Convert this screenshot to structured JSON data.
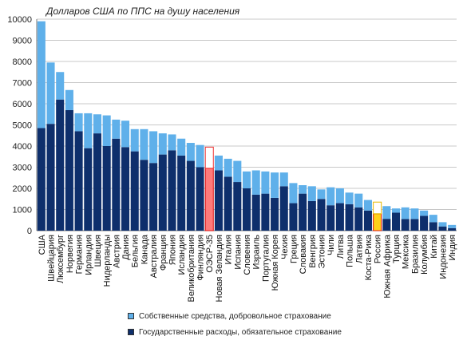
{
  "chart_data": {
    "type": "bar",
    "stacked": true,
    "title": "Долларов США по ППС на душу населения",
    "ylim": [
      0,
      10000
    ],
    "yticks": [
      0,
      1000,
      2000,
      3000,
      4000,
      5000,
      6000,
      7000,
      8000,
      9000,
      10000
    ],
    "grid": true,
    "legend_position": "bottom",
    "categories": [
      "США",
      "Швейцария",
      "Люксембург",
      "Норвегия",
      "Германия",
      "Ирландия",
      "Швеция",
      "Нидерланды",
      "Австрия",
      "Дания",
      "Бельгия",
      "Канада",
      "Австралия",
      "Франция",
      "Япония",
      "Исландия",
      "Великобритания",
      "Финляндия",
      "ОЭСР-35",
      "Новая Зеландия",
      "Италия",
      "Испания",
      "Словения",
      "Израиль",
      "Португалия",
      "Южная Корея",
      "Чехия",
      "Греция",
      "Словакия",
      "Венгрия",
      "Эстония",
      "Чили",
      "Литва",
      "Польша",
      "Латвия",
      "Коста-Рика",
      "Россия",
      "Южная Африка",
      "Турция",
      "Мексика",
      "Бразилия",
      "Колумбия",
      "Китай",
      "Индонезия",
      "Индия"
    ],
    "highlight": {
      "ОЭСР-35": "#ff7a7a",
      "Россия": "#ffd21a"
    },
    "series": [
      {
        "name": "Государственные расходы, обязательное страхование",
        "color": "#0e2f6c",
        "values": [
          4850,
          5050,
          6200,
          5700,
          4700,
          3900,
          4600,
          4000,
          4350,
          3950,
          3750,
          3350,
          3200,
          3600,
          3800,
          3550,
          3300,
          3000,
          2950,
          2850,
          2550,
          2300,
          2000,
          1700,
          1750,
          1550,
          2100,
          1300,
          1750,
          1400,
          1500,
          1200,
          1300,
          1250,
          1100,
          950,
          800,
          560,
          850,
          550,
          550,
          700,
          400,
          200,
          120
        ]
      },
      {
        "name": "Собственные средства, добровольное страхование",
        "color": "#5fb0ea",
        "values": [
          5050,
          2900,
          1300,
          950,
          850,
          1650,
          900,
          1450,
          900,
          1250,
          1050,
          1450,
          1500,
          1000,
          750,
          800,
          850,
          1050,
          1000,
          700,
          850,
          1000,
          800,
          1150,
          1050,
          1200,
          650,
          950,
          400,
          700,
          450,
          850,
          700,
          550,
          650,
          500,
          550,
          600,
          200,
          550,
          500,
          250,
          350,
          200,
          150
        ]
      }
    ]
  }
}
